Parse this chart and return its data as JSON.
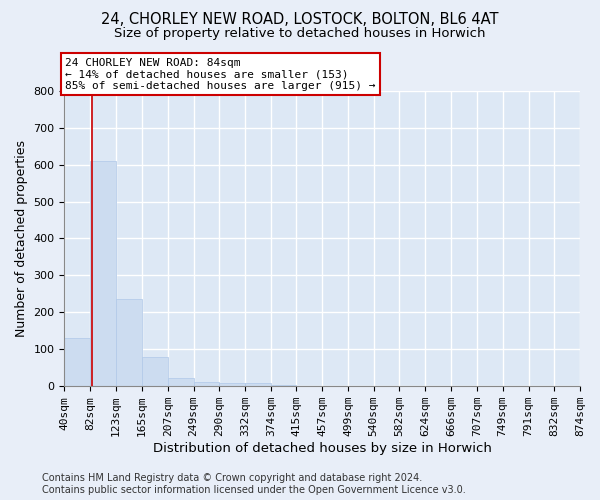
{
  "title_line1": "24, CHORLEY NEW ROAD, LOSTOCK, BOLTON, BL6 4AT",
  "title_line2": "Size of property relative to detached houses in Horwich",
  "xlabel": "Distribution of detached houses by size in Horwich",
  "ylabel": "Number of detached properties",
  "bar_color": "#ccdcf0",
  "bar_edge_color": "#b0c8e8",
  "bin_edges": [
    40,
    82,
    123,
    165,
    207,
    249,
    290,
    332,
    374,
    415,
    457,
    499,
    540,
    582,
    624,
    666,
    707,
    749,
    791,
    832,
    874
  ],
  "bin_labels": [
    "40sqm",
    "82sqm",
    "123sqm",
    "165sqm",
    "207sqm",
    "249sqm",
    "290sqm",
    "332sqm",
    "374sqm",
    "415sqm",
    "457sqm",
    "499sqm",
    "540sqm",
    "582sqm",
    "624sqm",
    "666sqm",
    "707sqm",
    "749sqm",
    "791sqm",
    "832sqm",
    "874sqm"
  ],
  "bar_heights": [
    130,
    610,
    237,
    80,
    22,
    12,
    8,
    8,
    3,
    1,
    1,
    0,
    0,
    0,
    0,
    0,
    0,
    0,
    0,
    0
  ],
  "ylim": [
    0,
    800
  ],
  "yticks": [
    0,
    100,
    200,
    300,
    400,
    500,
    600,
    700,
    800
  ],
  "vline_x": 84,
  "vline_color": "#cc0000",
  "annotation_text": "24 CHORLEY NEW ROAD: 84sqm\n← 14% of detached houses are smaller (153)\n85% of semi-detached houses are larger (915) →",
  "annotation_box_color": "#cc0000",
  "footnote": "Contains HM Land Registry data © Crown copyright and database right 2024.\nContains public sector information licensed under the Open Government Licence v3.0.",
  "bg_color": "#e8eef8",
  "plot_bg_color": "#dde8f5",
  "grid_color": "#ffffff",
  "title_fontsize": 10.5,
  "subtitle_fontsize": 9.5,
  "axis_label_fontsize": 9,
  "tick_fontsize": 8,
  "footnote_fontsize": 7
}
